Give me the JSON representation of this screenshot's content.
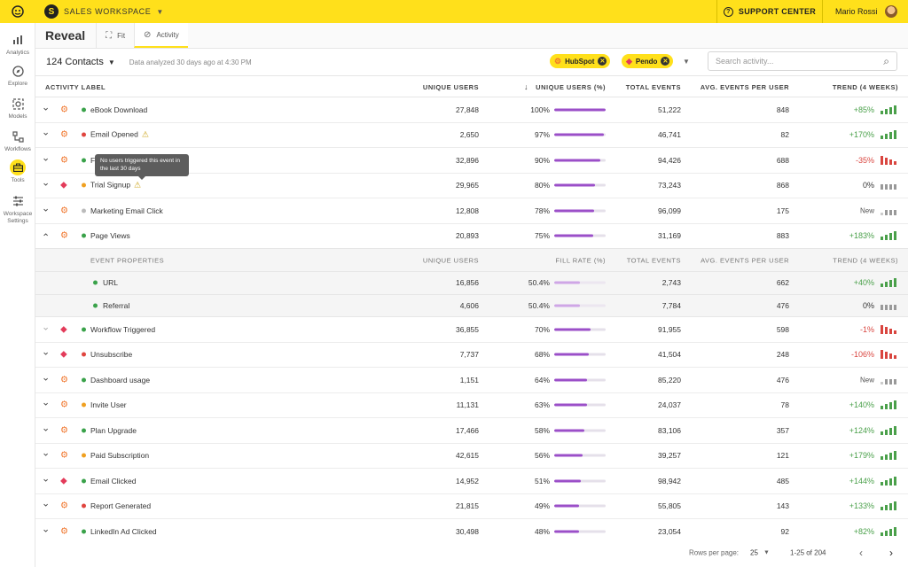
{
  "topbar": {
    "workspace_initial": "S",
    "workspace_name": "SALES WORKSPACE",
    "support_label": "SUPPORT CENTER",
    "user_name": "Mario Rossi"
  },
  "sidebar": [
    {
      "label": "Analytics",
      "icon": "bar-chart-icon"
    },
    {
      "label": "Explore",
      "icon": "compass-icon"
    },
    {
      "label": "Models",
      "icon": "models-icon"
    },
    {
      "label": "Workflows",
      "icon": "workflow-icon"
    },
    {
      "label": "Tools",
      "icon": "toolbox-icon"
    },
    {
      "label": "Workspace Settings",
      "icon": "sliders-icon"
    }
  ],
  "header": {
    "title": "Reveal",
    "tabs": [
      {
        "label": "Fit"
      },
      {
        "label": "Activity"
      }
    ]
  },
  "filters": {
    "contacts": "124 Contacts",
    "analyzed": "Data analyzed 30 days ago at 4:30 PM",
    "chips": [
      "HubSpot",
      "Pendo"
    ],
    "search_placeholder": "Search activity..."
  },
  "columns": {
    "label": "ACTIVITY LABEL",
    "unique_users": "UNIQUE USERS",
    "unique_pct": "UNIQUE USERS (%)",
    "total_events": "TOTAL EVENTS",
    "avg_events": "AVG. EVENTS PER USER",
    "trend": "TREND (4 WEEKS)"
  },
  "property_columns": {
    "label": "EVENT PROPERTIES",
    "unique_users": "UNIQUE USERS",
    "fill_rate": "FILL RATE (%)",
    "total_events": "TOTAL EVENTS",
    "avg_events": "AVG. EVENTS PER USER",
    "trend": "TREND (4 WEEKS)"
  },
  "tooltip": "No users triggered this event in the last 30 days",
  "rows": [
    {
      "name": "eBook Download",
      "source": "hubspot",
      "status": "green",
      "users": "27,848",
      "pct": "100%",
      "fill": 1.0,
      "events": "51,222",
      "avg": "848",
      "trend": "+85%",
      "dir": "up"
    },
    {
      "name": "Email Opened",
      "source": "hubspot",
      "status": "red",
      "warn": true,
      "users": "2,650",
      "pct": "97%",
      "fill": 0.97,
      "events": "46,741",
      "avg": "82",
      "trend": "+170%",
      "dir": "up"
    },
    {
      "name": "F",
      "source": "hubspot",
      "status": "green",
      "users": "32,896",
      "pct": "90%",
      "fill": 0.9,
      "events": "94,426",
      "avg": "688",
      "trend": "-35%",
      "dir": "down"
    },
    {
      "name": "Trial Signup",
      "source": "pendo",
      "status": "orange",
      "warn": true,
      "users": "29,965",
      "pct": "80%",
      "fill": 0.8,
      "events": "73,243",
      "avg": "868",
      "trend": "0%",
      "dir": "flat"
    },
    {
      "name": "Marketing Email Click",
      "source": "hubspot",
      "status": "grey",
      "users": "12,808",
      "pct": "78%",
      "fill": 0.78,
      "events": "96,099",
      "avg": "175",
      "trend": "New",
      "dir": "new"
    },
    {
      "name": "Page Views",
      "source": "hubspot",
      "status": "green",
      "expanded": true,
      "users": "20,893",
      "pct": "75%",
      "fill": 0.75,
      "events": "31,169",
      "avg": "883",
      "trend": "+183%",
      "dir": "up"
    },
    {
      "name": "Workflow Triggered",
      "source": "pendo",
      "status": "green",
      "chev_light": true,
      "users": "36,855",
      "pct": "70%",
      "fill": 0.7,
      "events": "91,955",
      "avg": "598",
      "trend": "-1%",
      "dir": "down"
    },
    {
      "name": "Unsubscribe",
      "source": "pendo",
      "status": "red",
      "users": "7,737",
      "pct": "68%",
      "fill": 0.68,
      "events": "41,504",
      "avg": "248",
      "trend": "-106%",
      "dir": "down"
    },
    {
      "name": "Dashboard usage",
      "source": "hubspot",
      "status": "green",
      "users": "1,151",
      "pct": "64%",
      "fill": 0.64,
      "events": "85,220",
      "avg": "476",
      "trend": "New",
      "dir": "new"
    },
    {
      "name": "Invite User",
      "source": "hubspot",
      "status": "orange",
      "users": "11,131",
      "pct": "63%",
      "fill": 0.63,
      "events": "24,037",
      "avg": "78",
      "trend": "+140%",
      "dir": "up"
    },
    {
      "name": "Plan Upgrade",
      "source": "hubspot",
      "status": "green",
      "users": "17,466",
      "pct": "58%",
      "fill": 0.58,
      "events": "83,106",
      "avg": "357",
      "trend": "+124%",
      "dir": "up"
    },
    {
      "name": "Paid Subscription",
      "source": "hubspot",
      "status": "orange",
      "users": "42,615",
      "pct": "56%",
      "fill": 0.56,
      "events": "39,257",
      "avg": "121",
      "trend": "+179%",
      "dir": "up"
    },
    {
      "name": "Email Clicked",
      "source": "pendo",
      "status": "green",
      "users": "14,952",
      "pct": "51%",
      "fill": 0.51,
      "events": "98,942",
      "avg": "485",
      "trend": "+144%",
      "dir": "up"
    },
    {
      "name": "Report Generated",
      "source": "hubspot",
      "status": "red",
      "users": "21,815",
      "pct": "49%",
      "fill": 0.49,
      "events": "55,805",
      "avg": "143",
      "trend": "+133%",
      "dir": "up"
    },
    {
      "name": "LinkedIn Ad Clicked",
      "source": "hubspot",
      "status": "green",
      "users": "30,498",
      "pct": "48%",
      "fill": 0.48,
      "events": "23,054",
      "avg": "92",
      "trend": "+82%",
      "dir": "up"
    }
  ],
  "properties": [
    {
      "name": "URL",
      "users": "16,856",
      "pct": "50.4%",
      "fill": 0.504,
      "events": "2,743",
      "avg": "662",
      "trend": "+40%",
      "dir": "up"
    },
    {
      "name": "Referral",
      "users": "4,606",
      "pct": "50.4%",
      "fill": 0.504,
      "events": "7,784",
      "avg": "476",
      "trend": "0%",
      "dir": "flat"
    }
  ],
  "footer": {
    "rows_per_page_label": "Rows per page:",
    "rows_per_page": "25",
    "range": "1-25 of 204"
  },
  "colors": {
    "accent": "#ffe01b",
    "bar": "#9b4fc8",
    "up": "#4aa04a",
    "down": "#d9453f",
    "status_green": "#3aa24a",
    "status_red": "#e0453f",
    "status_orange": "#f0a020",
    "status_grey": "#bbbbbb"
  }
}
